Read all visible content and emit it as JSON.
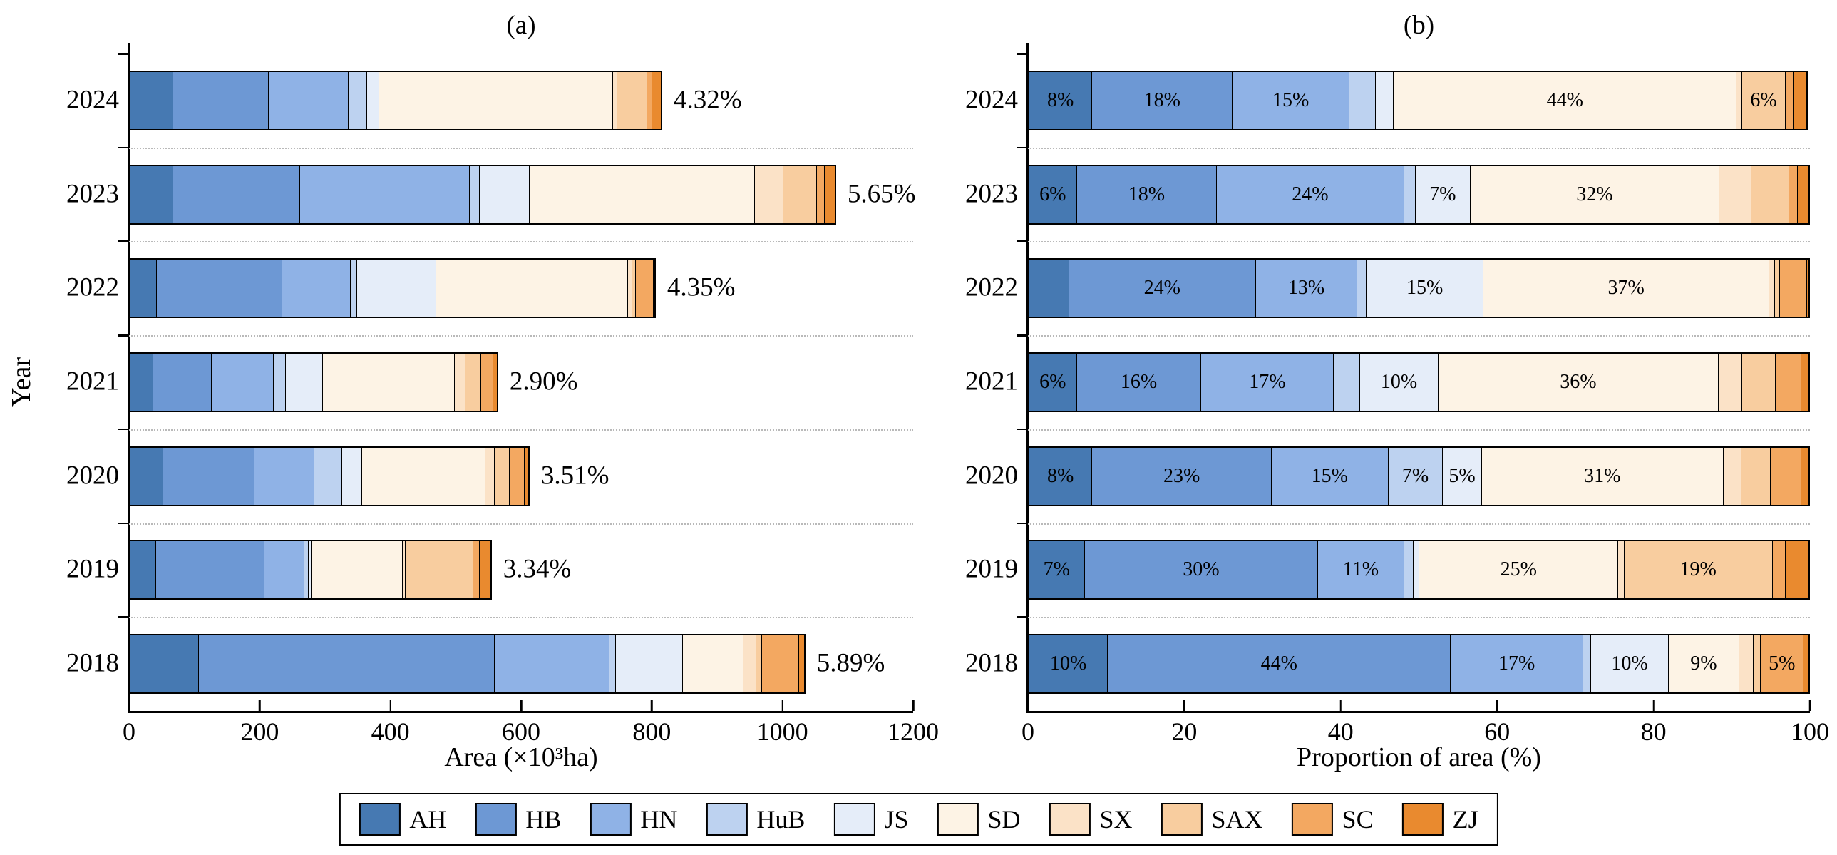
{
  "figure": {
    "background": "#ffffff"
  },
  "legend": {
    "items": [
      {
        "label": "AH",
        "color": "#4679b2"
      },
      {
        "label": "HB",
        "color": "#6d98d4"
      },
      {
        "label": "HN",
        "color": "#8fb2e6"
      },
      {
        "label": "HuB",
        "color": "#bdd2f0"
      },
      {
        "label": "JS",
        "color": "#e5edf9"
      },
      {
        "label": "SD",
        "color": "#fdf3e5"
      },
      {
        "label": "SX",
        "color": "#fbe2c7"
      },
      {
        "label": "SAX",
        "color": "#f8cd9f"
      },
      {
        "label": "SC",
        "color": "#f3a861"
      },
      {
        "label": "ZJ",
        "color": "#e98a2f"
      }
    ]
  },
  "chart_data": [
    {
      "type": "bar",
      "orientation": "horizontal",
      "stacked": true,
      "title": "(a)",
      "xlabel": "Area (×10³ha)",
      "ylabel": "Year",
      "xlim": [
        0,
        1200
      ],
      "xticks": [
        0,
        200,
        400,
        600,
        800,
        1000,
        1200
      ],
      "grid": "dotted-horizontal",
      "categories": [
        "2024",
        "2023",
        "2022",
        "2021",
        "2020",
        "2019",
        "2018"
      ],
      "series_keys": [
        "AH",
        "HB",
        "HN",
        "HuB",
        "JS",
        "SD",
        "SX",
        "SAX",
        "SC",
        "ZJ"
      ],
      "rows": [
        {
          "year": "2024",
          "values": {
            "AH": 65,
            "HB": 147,
            "HN": 123,
            "HuB": 28,
            "JS": 19,
            "SD": 360,
            "SX": 6,
            "SAX": 46,
            "SC": 8,
            "ZJ": 14
          },
          "total_label": "4.32%"
        },
        {
          "year": "2023",
          "values": {
            "AH": 65,
            "HB": 195,
            "HN": 260,
            "HuB": 16,
            "JS": 76,
            "SD": 346,
            "SX": 44,
            "SAX": 52,
            "SC": 12,
            "ZJ": 16
          },
          "total_label": "5.65%"
        },
        {
          "year": "2022",
          "values": {
            "AH": 40,
            "HB": 193,
            "HN": 105,
            "HuB": 10,
            "JS": 121,
            "SD": 296,
            "SX": 6,
            "SAX": 6,
            "SC": 27,
            "ZJ": 2
          },
          "total_label": "4.35%"
        },
        {
          "year": "2021",
          "values": {
            "AH": 34,
            "HB": 90,
            "HN": 96,
            "HuB": 19,
            "JS": 57,
            "SD": 203,
            "SX": 17,
            "SAX": 24,
            "SC": 19,
            "ZJ": 6
          },
          "total_label": "2.90%"
        },
        {
          "year": "2020",
          "values": {
            "AH": 49,
            "HB": 141,
            "HN": 92,
            "HuB": 43,
            "JS": 31,
            "SD": 190,
            "SX": 14,
            "SAX": 23,
            "SC": 24,
            "ZJ": 6
          },
          "total_label": "3.51%"
        },
        {
          "year": "2019",
          "values": {
            "AH": 39,
            "HB": 167,
            "HN": 61,
            "HuB": 7,
            "JS": 4,
            "SD": 141,
            "SX": 4,
            "SAX": 105,
            "SC": 10,
            "ZJ": 17
          },
          "total_label": "3.34%"
        },
        {
          "year": "2018",
          "values": {
            "AH": 104,
            "HB": 455,
            "HN": 176,
            "HuB": 10,
            "JS": 103,
            "SD": 93,
            "SX": 20,
            "SAX": 9,
            "SC": 57,
            "ZJ": 8
          },
          "total_label": "5.89%"
        }
      ]
    },
    {
      "type": "bar",
      "orientation": "horizontal",
      "stacked": true,
      "title": "(b)",
      "xlabel": "Proportion of area (%)",
      "xlim": [
        0,
        100
      ],
      "xticks": [
        0,
        20,
        40,
        60,
        80,
        100
      ],
      "grid": "dotted-horizontal",
      "categories": [
        "2024",
        "2023",
        "2022",
        "2021",
        "2020",
        "2019",
        "2018"
      ],
      "series_keys": [
        "AH",
        "HB",
        "HN",
        "HuB",
        "JS",
        "SD",
        "SX",
        "SAX",
        "SC",
        "ZJ"
      ],
      "rows": [
        {
          "year": "2024",
          "values": {
            "AH": 8,
            "HB": 18,
            "HN": 15,
            "HuB": 3.4,
            "JS": 2.3,
            "SD": 44,
            "SX": 0.7,
            "SAX": 5.6,
            "SC": 1.0,
            "ZJ": 1.7
          },
          "labels": {
            "AH": "8%",
            "HB": "18%",
            "HN": "15%",
            "SD": "44%",
            "SAX": "6%"
          }
        },
        {
          "year": "2023",
          "values": {
            "AH": 6,
            "HB": 18,
            "HN": 24,
            "HuB": 1.5,
            "JS": 7,
            "SD": 32,
            "SX": 4.1,
            "SAX": 4.8,
            "SC": 1.1,
            "ZJ": 1.5
          },
          "labels": {
            "AH": "6%",
            "HB": "18%",
            "HN": "24%",
            "JS": "7%",
            "SD": "32%"
          }
        },
        {
          "year": "2022",
          "values": {
            "AH": 5,
            "HB": 24,
            "HN": 13,
            "HuB": 1.2,
            "JS": 15,
            "SD": 36.7,
            "SX": 0.7,
            "SAX": 0.7,
            "SC": 3.4,
            "ZJ": 0.3
          },
          "labels": {
            "HB": "24%",
            "HN": "13%",
            "JS": "15%",
            "SD": "37%"
          }
        },
        {
          "year": "2021",
          "values": {
            "AH": 6,
            "HB": 16,
            "HN": 17,
            "HuB": 3.4,
            "JS": 10,
            "SD": 36,
            "SX": 3.0,
            "SAX": 4.3,
            "SC": 3.3,
            "ZJ": 1.0
          },
          "labels": {
            "AH": "6%",
            "HB": "16%",
            "HN": "17%",
            "JS": "10%",
            "SD": "36%"
          }
        },
        {
          "year": "2020",
          "values": {
            "AH": 8,
            "HB": 23,
            "HN": 15,
            "HuB": 7,
            "JS": 5,
            "SD": 31,
            "SX": 2.3,
            "SAX": 3.8,
            "SC": 3.9,
            "ZJ": 1.0
          },
          "labels": {
            "AH": "8%",
            "HB": "23%",
            "HN": "15%",
            "HuB": "7%",
            "JS": "5%",
            "SD": "31%"
          }
        },
        {
          "year": "2019",
          "values": {
            "AH": 7,
            "HB": 30,
            "HN": 11,
            "HuB": 1.2,
            "JS": 0.8,
            "SD": 25.5,
            "SX": 0.8,
            "SAX": 19,
            "SC": 1.7,
            "ZJ": 3.0
          },
          "labels": {
            "AH": "7%",
            "HB": "30%",
            "HN": "11%",
            "SD": "25%",
            "SAX": "19%"
          }
        },
        {
          "year": "2018",
          "values": {
            "AH": 10,
            "HB": 44,
            "HN": 17,
            "HuB": 1.0,
            "JS": 10,
            "SD": 9,
            "SX": 1.9,
            "SAX": 0.9,
            "SC": 5.5,
            "ZJ": 0.7
          },
          "labels": {
            "AH": "10%",
            "HB": "44%",
            "HN": "17%",
            "JS": "10%",
            "SD": "9%",
            "SC": "5%"
          }
        }
      ]
    }
  ]
}
